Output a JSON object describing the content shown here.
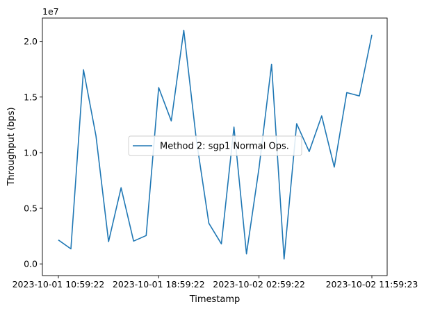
{
  "chart_data": {
    "type": "line",
    "title": "",
    "xlabel": "Timestamp",
    "ylabel": "Throughput (bps)",
    "y_offset_label": "1e7",
    "x_tick_labels": [
      "2023-10-01 10:59:22",
      "2023-10-01 18:59:22",
      "2023-10-02 02:59:22",
      "2023-10-02 11:59:23"
    ],
    "y_tick_labels": [
      "0.0",
      "0.5",
      "1.0",
      "1.5",
      "2.0"
    ],
    "ylim": [
      -1050000,
      22100000
    ],
    "grid": false,
    "legend_location": "center",
    "series": [
      {
        "name": "Method 2: sgp1 Normal Ops.",
        "color": "#1f77b4",
        "x": [
          "2023-10-01 10:59:22",
          "2023-10-01 11:59:22",
          "2023-10-01 12:59:22",
          "2023-10-01 13:59:22",
          "2023-10-01 14:59:22",
          "2023-10-01 15:59:22",
          "2023-10-01 16:59:22",
          "2023-10-01 17:59:22",
          "2023-10-01 18:59:22",
          "2023-10-01 19:59:22",
          "2023-10-01 20:59:22",
          "2023-10-01 21:59:22",
          "2023-10-01 22:59:22",
          "2023-10-01 23:59:22",
          "2023-10-02 00:59:22",
          "2023-10-02 01:59:22",
          "2023-10-02 02:59:22",
          "2023-10-02 03:59:22",
          "2023-10-02 04:59:22",
          "2023-10-02 05:59:22",
          "2023-10-02 06:59:22",
          "2023-10-02 07:59:22",
          "2023-10-02 08:59:22",
          "2023-10-02 09:59:22",
          "2023-10-02 10:59:22"
        ],
        "values": [
          2150000,
          1350000,
          17450000,
          11500000,
          2000000,
          6850000,
          2050000,
          2550000,
          15850000,
          12850000,
          21000000,
          11200000,
          3650000,
          1800000,
          12300000,
          900000,
          8600000,
          17950000,
          450000,
          12600000,
          10100000,
          13300000,
          8700000,
          15400000,
          15100000
        ]
      }
    ],
    "last_point": {
      "x": "2023-10-02 11:59:23",
      "value": 20600000
    }
  }
}
